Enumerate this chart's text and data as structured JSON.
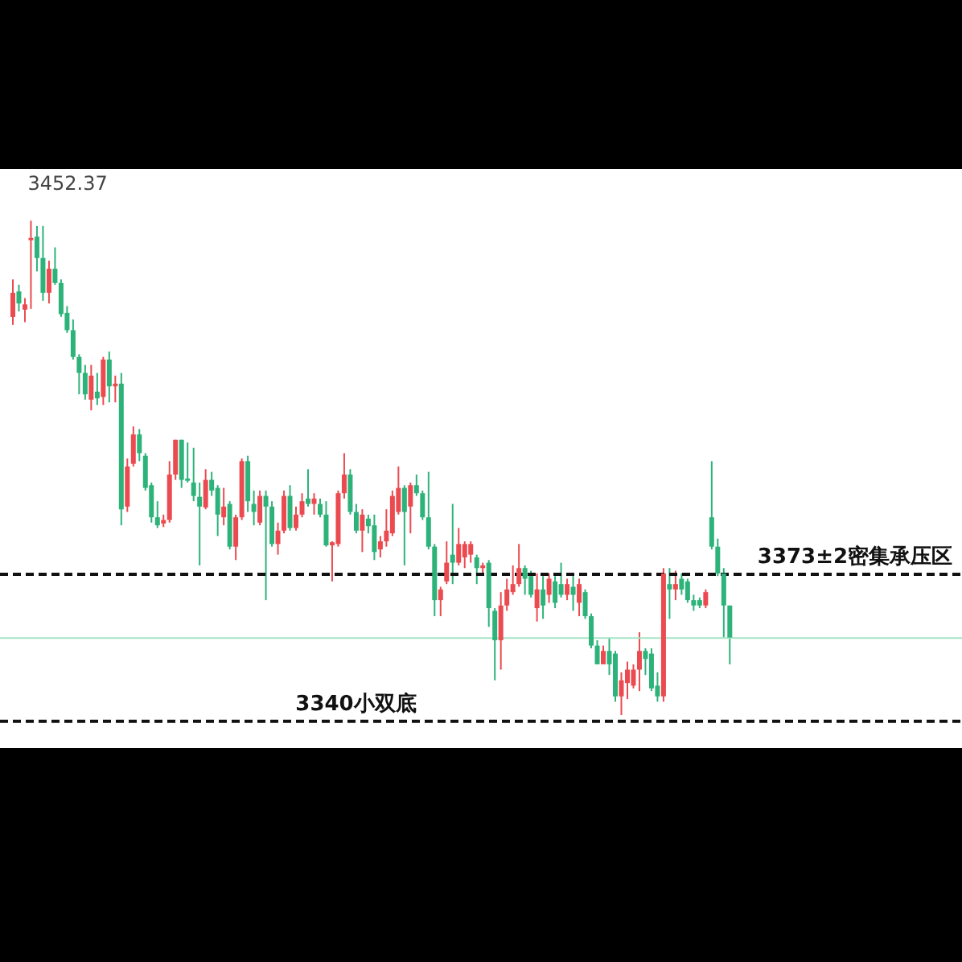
{
  "chart_data": {
    "type": "candlestick",
    "grid": false,
    "categories": [
      null,
      null,
      null,
      null,
      null,
      null,
      null,
      null,
      null,
      null,
      null,
      null,
      null,
      null,
      null,
      null,
      null,
      null,
      null,
      null,
      null,
      null,
      null,
      null,
      null,
      null,
      null,
      null,
      null,
      null,
      null,
      null,
      null,
      null,
      null,
      null,
      null,
      null,
      null,
      null,
      null,
      null,
      null,
      null,
      null,
      null,
      null,
      null,
      null,
      null,
      null,
      null,
      null,
      null,
      null,
      null,
      null,
      null,
      null,
      null,
      null,
      null,
      null,
      null,
      null,
      null,
      null,
      null,
      null,
      null,
      null,
      null,
      null,
      null,
      null,
      null,
      null,
      null,
      null,
      null,
      null,
      null,
      null,
      null,
      null,
      null,
      null,
      null,
      null,
      null,
      null,
      null,
      null,
      null,
      null,
      null,
      null,
      null,
      null,
      null,
      null,
      null,
      null,
      null,
      null,
      null,
      null,
      null,
      null,
      null,
      null,
      null,
      null,
      null,
      null,
      null,
      null,
      null,
      null,
      null
    ],
    "ohlc": [
      [
        3430.8,
        3439.2,
        3429.0,
        3436.2
      ],
      [
        3436.5,
        3438.0,
        3432.0,
        3433.8
      ],
      [
        3432.4,
        3435.0,
        3429.6,
        3433.6
      ],
      [
        3448.0,
        3452.37,
        3432.6,
        3448.5
      ],
      [
        3448.8,
        3451.2,
        3441.0,
        3444.0
      ],
      [
        3444.0,
        3451.2,
        3434.4,
        3436.2
      ],
      [
        3436.2,
        3443.4,
        3433.8,
        3441.6
      ],
      [
        3441.6,
        3446.4,
        3438.0,
        3438.4
      ],
      [
        3438.4,
        3439.2,
        3430.8,
        3431.4
      ],
      [
        3431.7,
        3433.2,
        3427.2,
        3427.8
      ],
      [
        3427.8,
        3430.2,
        3421.2,
        3421.8
      ],
      [
        3421.8,
        3422.4,
        3413.4,
        3418.2
      ],
      [
        3418.2,
        3420.0,
        3412.2,
        3413.4
      ],
      [
        3412.2,
        3420.0,
        3409.8,
        3417.6
      ],
      [
        3414.0,
        3418.2,
        3411.0,
        3412.5
      ],
      [
        3412.8,
        3421.8,
        3411.0,
        3421.2
      ],
      [
        3421.2,
        3423.0,
        3411.6,
        3415.2
      ],
      [
        3415.2,
        3417.6,
        3411.6,
        3415.8
      ],
      [
        3415.8,
        3418.2,
        3384.0,
        3387.6
      ],
      [
        3388.2,
        3399.0,
        3387.0,
        3397.2
      ],
      [
        3397.8,
        3406.2,
        3397.2,
        3404.4
      ],
      [
        3404.4,
        3405.6,
        3398.4,
        3400.2
      ],
      [
        3399.6,
        3400.2,
        3391.8,
        3392.4
      ],
      [
        3393.0,
        3393.6,
        3384.6,
        3385.8
      ],
      [
        3385.8,
        3389.4,
        3383.4,
        3384.0
      ],
      [
        3384.4,
        3386.4,
        3383.6,
        3385.2
      ],
      [
        3385.2,
        3398.4,
        3384.6,
        3395.4
      ],
      [
        3395.4,
        3403.2,
        3394.2,
        3403.2
      ],
      [
        3403.2,
        3403.2,
        3392.4,
        3394.2
      ],
      [
        3394.5,
        3402.6,
        3393.6,
        3394.0
      ],
      [
        3393.6,
        3401.4,
        3389.4,
        3390.6
      ],
      [
        3390.4,
        3393.6,
        3375.0,
        3388.2
      ],
      [
        3388.0,
        3396.6,
        3387.6,
        3394.2
      ],
      [
        3394.2,
        3396.0,
        3390.6,
        3391.8
      ],
      [
        3392.4,
        3393.0,
        3381.6,
        3386.4
      ],
      [
        3385.8,
        3392.4,
        3384.0,
        3388.2
      ],
      [
        3388.8,
        3389.4,
        3378.6,
        3379.2
      ],
      [
        3379.2,
        3386.4,
        3376.2,
        3385.8
      ],
      [
        3385.8,
        3399.0,
        3385.2,
        3398.4
      ],
      [
        3398.4,
        3399.6,
        3387.0,
        3389.4
      ],
      [
        3388.8,
        3391.8,
        3384.0,
        3387.0
      ],
      [
        3384.6,
        3391.8,
        3384.0,
        3390.6
      ],
      [
        3390.6,
        3391.8,
        3367.2,
        3388.2
      ],
      [
        3388.2,
        3389.4,
        3379.2,
        3379.8
      ],
      [
        3379.8,
        3384.6,
        3377.4,
        3382.8
      ],
      [
        3382.8,
        3391.8,
        3382.2,
        3390.6
      ],
      [
        3390.6,
        3393.0,
        3382.8,
        3383.4
      ],
      [
        3383.4,
        3388.2,
        3382.8,
        3386.4
      ],
      [
        3386.4,
        3391.2,
        3385.8,
        3389.4
      ],
      [
        3390.0,
        3396.6,
        3388.2,
        3388.8
      ],
      [
        3388.8,
        3391.2,
        3386.4,
        3390.0
      ],
      [
        3388.8,
        3390.0,
        3385.8,
        3386.4
      ],
      [
        3386.4,
        3389.4,
        3379.2,
        3379.5
      ],
      [
        3379.5,
        3380.4,
        3371.4,
        3380.2
      ],
      [
        3379.8,
        3391.8,
        3379.2,
        3391.2
      ],
      [
        3391.2,
        3400.2,
        3390.0,
        3395.4
      ],
      [
        3395.4,
        3396.6,
        3386.4,
        3387.0
      ],
      [
        3387.0,
        3388.8,
        3382.2,
        3382.8
      ],
      [
        3382.8,
        3387.6,
        3378.0,
        3386.4
      ],
      [
        3385.5,
        3386.4,
        3382.2,
        3383.8
      ],
      [
        3384.0,
        3386.4,
        3376.2,
        3378.0
      ],
      [
        3378.6,
        3381.6,
        3376.8,
        3380.4
      ],
      [
        3380.4,
        3387.6,
        3379.2,
        3382.8
      ],
      [
        3382.2,
        3391.8,
        3381.6,
        3390.6
      ],
      [
        3387.0,
        3397.2,
        3386.4,
        3392.4
      ],
      [
        3392.4,
        3393.0,
        3375.0,
        3387.0
      ],
      [
        3388.2,
        3393.6,
        3382.2,
        3393.0
      ],
      [
        3393.0,
        3395.4,
        3390.6,
        3391.2
      ],
      [
        3391.2,
        3391.8,
        3385.2,
        3385.8
      ],
      [
        3385.8,
        3396.0,
        3378.6,
        3379.2
      ],
      [
        3379.2,
        3379.8,
        3363.6,
        3367.2
      ],
      [
        3367.2,
        3370.2,
        3363.6,
        3369.6
      ],
      [
        3371.4,
        3380.4,
        3370.8,
        3375.6
      ],
      [
        3377.4,
        3388.8,
        3370.8,
        3375.6
      ],
      [
        3375.6,
        3383.4,
        3375.0,
        3379.8
      ],
      [
        3376.8,
        3380.4,
        3374.4,
        3379.8
      ],
      [
        3377.4,
        3380.4,
        3375.6,
        3379.8
      ],
      [
        3376.8,
        3377.4,
        3370.8,
        3374.4
      ],
      [
        3374.4,
        3375.6,
        3373.2,
        3375.0
      ],
      [
        3375.6,
        3376.2,
        3361.2,
        3365.4
      ],
      [
        3364.8,
        3365.4,
        3349.2,
        3358.2
      ],
      [
        3358.2,
        3369.0,
        3351.6,
        3366.0
      ],
      [
        3366.0,
        3372.0,
        3364.8,
        3369.6
      ],
      [
        3369.0,
        3375.0,
        3368.4,
        3370.8
      ],
      [
        3370.8,
        3379.8,
        3370.2,
        3374.4
      ],
      [
        3374.4,
        3375.0,
        3368.4,
        3372.0
      ],
      [
        3372.6,
        3373.8,
        3367.8,
        3368.4
      ],
      [
        3365.4,
        3373.2,
        3362.4,
        3369.6
      ],
      [
        3369.6,
        3372.6,
        3363.0,
        3366.0
      ],
      [
        3368.4,
        3373.2,
        3366.6,
        3372.0
      ],
      [
        3371.4,
        3372.6,
        3365.4,
        3366.6
      ],
      [
        3370.8,
        3375.6,
        3367.8,
        3368.4
      ],
      [
        3368.4,
        3372.0,
        3367.2,
        3370.8
      ],
      [
        3370.2,
        3372.6,
        3364.8,
        3368.4
      ],
      [
        3366.6,
        3372.0,
        3363.6,
        3370.8
      ],
      [
        3369.0,
        3369.6,
        3363.0,
        3363.6
      ],
      [
        3363.6,
        3364.2,
        3356.4,
        3357.0
      ],
      [
        3357.0,
        3358.2,
        3352.8,
        3352.8
      ],
      [
        3352.8,
        3357.0,
        3352.8,
        3355.8
      ],
      [
        3355.8,
        3358.8,
        3350.4,
        3352.8
      ],
      [
        3355.2,
        3355.8,
        3344.4,
        3345.6
      ],
      [
        3345.6,
        3351.0,
        3341.4,
        3349.2
      ],
      [
        3348.6,
        3353.4,
        3345.0,
        3351.6
      ],
      [
        3348.0,
        3352.8,
        3347.4,
        3351.6
      ],
      [
        3351.6,
        3360.0,
        3346.8,
        3355.8
      ],
      [
        3355.8,
        3356.4,
        3350.4,
        3354.0
      ],
      [
        3355.2,
        3356.4,
        3346.8,
        3347.4
      ],
      [
        3348.0,
        3351.0,
        3344.4,
        3345.6
      ],
      [
        3345.6,
        3374.4,
        3344.4,
        3373.2
      ],
      [
        3370.8,
        3374.4,
        3363.0,
        3369.6
      ],
      [
        3369.6,
        3373.8,
        3367.2,
        3370.8
      ],
      [
        3372.0,
        3373.2,
        3368.4,
        3369.6
      ],
      [
        3371.4,
        3372.0,
        3366.6,
        3367.2
      ],
      [
        3367.2,
        3368.4,
        3364.8,
        3366.0
      ],
      [
        3367.2,
        3367.8,
        3365.4,
        3366.0
      ],
      [
        3366.0,
        3369.6,
        3365.4,
        3369.0
      ],
      [
        3385.8,
        3398.4,
        3378.6,
        3379.2
      ],
      [
        3379.2,
        3381.0,
        3372.6,
        3373.2
      ],
      [
        3373.2,
        3374.4,
        3358.8,
        3366.0
      ],
      [
        3366.0,
        3366.0,
        3352.8,
        3358.8
      ]
    ],
    "colors": [
      "#eb4b50",
      "#2db37a",
      "#eb4b50",
      "#eb4b50",
      "#2db37a",
      "#2db37a",
      "#eb4b50",
      "#2db37a",
      "#2db37a",
      "#2db37a",
      "#2db37a",
      "#2db37a",
      "#2db37a",
      "#eb4b50",
      "#2db37a",
      "#eb4b50",
      "#2db37a",
      "#eb4b50",
      "#2db37a",
      "#eb4b50",
      "#eb4b50",
      "#2db37a",
      "#2db37a",
      "#2db37a",
      "#2db37a",
      "#eb4b50",
      "#eb4b50",
      "#eb4b50",
      "#2db37a",
      "#2db37a",
      "#2db37a",
      "#2db37a",
      "#eb4b50",
      "#2db37a",
      "#2db37a",
      "#eb4b50",
      "#2db37a",
      "#eb4b50",
      "#eb4b50",
      "#2db37a",
      "#2db37a",
      "#eb4b50",
      "#2db37a",
      "#2db37a",
      "#eb4b50",
      "#eb4b50",
      "#2db37a",
      "#eb4b50",
      "#eb4b50",
      "#2db37a",
      "#eb4b50",
      "#2db37a",
      "#2db37a",
      "#eb4b50",
      "#eb4b50",
      "#eb4b50",
      "#2db37a",
      "#2db37a",
      "#eb4b50",
      "#2db37a",
      "#2db37a",
      "#eb4b50",
      "#eb4b50",
      "#eb4b50",
      "#eb4b50",
      "#2db37a",
      "#eb4b50",
      "#2db37a",
      "#2db37a",
      "#2db37a",
      "#2db37a",
      "#eb4b50",
      "#eb4b50",
      "#2db37a",
      "#eb4b50",
      "#eb4b50",
      "#eb4b50",
      "#2db37a",
      "#eb4b50",
      "#2db37a",
      "#2db37a",
      "#eb4b50",
      "#eb4b50",
      "#eb4b50",
      "#eb4b50",
      "#2db37a",
      "#2db37a",
      "#eb4b50",
      "#2db37a",
      "#eb4b50",
      "#2db37a",
      "#2db37a",
      "#eb4b50",
      "#2db37a",
      "#eb4b50",
      "#2db37a",
      "#2db37a",
      "#2db37a",
      "#eb4b50",
      "#2db37a",
      "#2db37a",
      "#eb4b50",
      "#eb4b50",
      "#eb4b50",
      "#eb4b50",
      "#2db37a",
      "#2db37a",
      "#2db37a",
      "#eb4b50",
      "#2db37a",
      "#eb4b50",
      "#2db37a",
      "#2db37a",
      "#2db37a",
      "#2db37a",
      "#eb4b50",
      "#2db37a",
      "#2db37a",
      "#2db37a",
      "#2db37a"
    ],
    "ylim": [
      3334,
      3464
    ],
    "ref_lines": [
      {
        "axis": "y",
        "value": 3373,
        "label": "3373±2密集承压区",
        "color": "#111111",
        "line_style": "dashed"
      },
      {
        "axis": "y",
        "value": 3340,
        "label": "3340小双底",
        "color": "#111111",
        "line_style": "dashed"
      },
      {
        "axis": "y",
        "value": 3358.7,
        "label": null,
        "color": "#a6e3c6",
        "line_style": "solid"
      }
    ],
    "annotations": [
      "3452.37"
    ]
  }
}
